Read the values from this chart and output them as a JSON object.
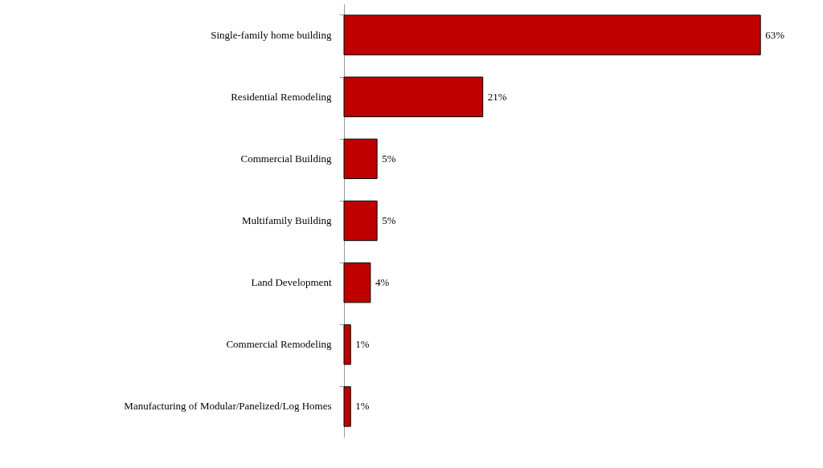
{
  "chart_data": {
    "type": "bar",
    "orientation": "horizontal",
    "categories": [
      "Single-family home building",
      "Residential Remodeling",
      "Commercial Building",
      "Multifamily Building",
      "Land Development",
      "Commercial Remodeling",
      "Manufacturing of Modular/Panelized/Log Homes"
    ],
    "values": [
      63,
      21,
      5,
      5,
      4,
      1,
      1
    ],
    "value_labels": [
      "63%",
      "21%",
      "5%",
      "5%",
      "4%",
      "1%",
      "1%"
    ],
    "color": "#c00000"
  }
}
